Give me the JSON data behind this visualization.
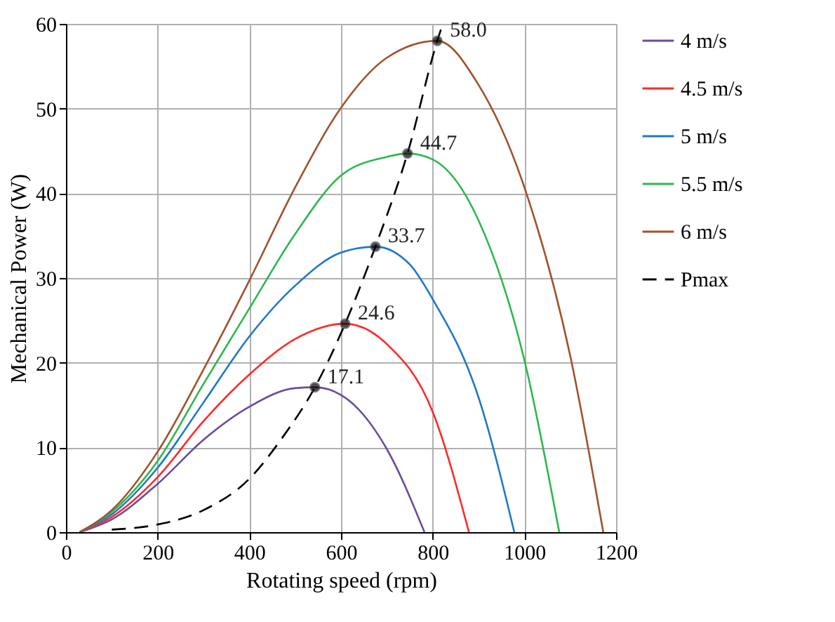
{
  "chart_data": {
    "type": "line",
    "xlabel": "Rotating speed (rpm)",
    "ylabel": "Mechanical Power (W)",
    "xlim": [
      0,
      1200
    ],
    "xticks": [
      0,
      200,
      400,
      600,
      800,
      1000,
      1200
    ],
    "ylim": [
      0,
      60
    ],
    "yticks": [
      0,
      10,
      20,
      30,
      40,
      50,
      60
    ],
    "grid": true,
    "legend": "right",
    "marker": "none",
    "line_style": "solid",
    "series": [
      {
        "name": "4 m/s",
        "color": "#6b4c9a",
        "x": [
          30,
          100,
          200,
          300,
          400,
          500,
          543,
          600,
          700,
          782
        ],
        "values": [
          0,
          1.5,
          5.7,
          10.9,
          14.8,
          17.0,
          17.1,
          16.2,
          9.8,
          0
        ]
      },
      {
        "name": "4.5 m/s",
        "color": "#ff2a2a",
        "x": [
          30,
          100,
          200,
          300,
          400,
          500,
          609,
          700,
          800,
          879
        ],
        "values": [
          0,
          1.8,
          6.5,
          13.1,
          18.6,
          22.8,
          24.6,
          22.2,
          14.2,
          0
        ]
      },
      {
        "name": "5 m/s",
        "color": "#1f78c8",
        "x": [
          30,
          100,
          200,
          300,
          400,
          500,
          600,
          675,
          750,
          800,
          900,
          978
        ],
        "values": [
          0,
          2.1,
          7.6,
          15.3,
          23.1,
          29.1,
          33.0,
          33.7,
          31.6,
          27.5,
          15.9,
          0
        ]
      },
      {
        "name": "5.5 m/s",
        "color": "#2db84d",
        "x": [
          30,
          100,
          200,
          300,
          400,
          500,
          600,
          700,
          745,
          800,
          900,
          1000,
          1076
        ],
        "values": [
          0,
          2.4,
          8.4,
          17.5,
          26.4,
          35.2,
          42.1,
          44.3,
          44.7,
          44.0,
          36.8,
          20.3,
          0
        ]
      },
      {
        "name": "6 m/s",
        "color": "#a0522d",
        "x": [
          30,
          100,
          200,
          300,
          400,
          500,
          600,
          700,
          810,
          900,
          1000,
          1100,
          1172
        ],
        "values": [
          0,
          2.6,
          9.5,
          19.2,
          29.7,
          40.7,
          50.1,
          56.0,
          58.0,
          52.8,
          40.7,
          20.8,
          0
        ]
      },
      {
        "name": "Pmax",
        "color": "#000000",
        "line_style": "dashed",
        "x": [
          100,
          200,
          300,
          400,
          470,
          543,
          609,
          675,
          745,
          810,
          822
        ],
        "values": [
          0.3,
          0.9,
          2.6,
          6.3,
          11.0,
          17.1,
          24.6,
          33.7,
          44.7,
          58.0,
          60
        ]
      }
    ],
    "annotations": [
      {
        "text": "17.1",
        "x": 543,
        "y": 17.1
      },
      {
        "text": "24.6",
        "x": 609,
        "y": 24.6
      },
      {
        "text": "33.7",
        "x": 675,
        "y": 33.7
      },
      {
        "text": "44.7",
        "x": 745,
        "y": 44.7
      },
      {
        "text": "58.0",
        "x": 810,
        "y": 58.0
      }
    ]
  }
}
